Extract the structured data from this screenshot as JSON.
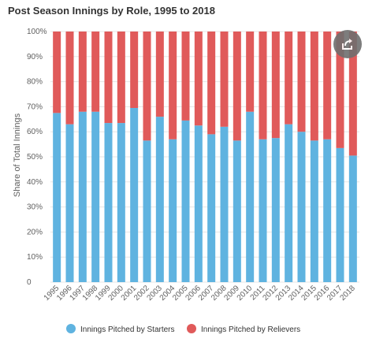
{
  "chart_data": {
    "type": "bar",
    "stacked": true,
    "title": "Post Season Innings by Role, 1995 to 2018",
    "ylabel": "Share of Total Innings",
    "xlabel": "",
    "ylim": [
      0,
      100
    ],
    "yticks": [
      "0",
      "10%",
      "20%",
      "30%",
      "40%",
      "50%",
      "60%",
      "70%",
      "80%",
      "90%",
      "100%"
    ],
    "categories": [
      "1995",
      "1996",
      "1997",
      "1998",
      "1999",
      "2000",
      "2001",
      "2002",
      "2003",
      "2004",
      "2005",
      "2006",
      "2007",
      "2008",
      "2009",
      "2010",
      "2011",
      "2012",
      "2013",
      "2014",
      "2015",
      "2016",
      "2017",
      "2018"
    ],
    "series": [
      {
        "name": "Innings Pitched by Starters",
        "color": "#5fb3e0",
        "values": [
          67.5,
          63,
          68,
          68,
          63.5,
          63.5,
          69.5,
          56.5,
          66,
          57,
          64.5,
          62.5,
          59,
          62,
          56.5,
          68,
          57,
          57.5,
          63,
          60,
          56.5,
          57,
          53.5,
          50.5
        ]
      },
      {
        "name": "Innings Pitched by Relievers",
        "color": "#e05a5a",
        "values": [
          32.5,
          37,
          32,
          32,
          36.5,
          36.5,
          30.5,
          43.5,
          34,
          43,
          35.5,
          37.5,
          41,
          38,
          43.5,
          32,
          43,
          42.5,
          37,
          40,
          43.5,
          43,
          46.5,
          49.5
        ]
      }
    ],
    "grid": true,
    "legend_position": "bottom"
  },
  "share": {
    "icon": "share-icon"
  }
}
